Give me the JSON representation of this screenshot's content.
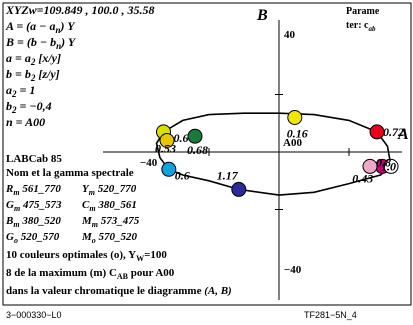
{
  "header": {
    "xyz": "XYZw=109.849 , 100.0 , 35.58"
  },
  "formulas": [
    {
      "id": "a-def",
      "text": "A = (a − a",
      "sub": "n",
      "tail": ") Y"
    },
    {
      "id": "b-def",
      "text": "B = (b − b",
      "sub": "n",
      "tail": ") Y"
    },
    {
      "id": "a-eq",
      "text": "a = a",
      "sub": "2",
      "tail": " [x/y]"
    },
    {
      "id": "b-eq",
      "text": "b = b",
      "sub": "2",
      "tail": " [z/y]"
    },
    {
      "id": "a2",
      "text": "a",
      "sub": "2",
      "tail": " = 1"
    },
    {
      "id": "b2",
      "text": "b",
      "sub": "2",
      "tail": " = −0,4"
    },
    {
      "id": "n",
      "text": "n = A00",
      "sub": "",
      "tail": ""
    }
  ],
  "space_name": "LABCab 85",
  "gamma_title": "Nom et la gamma spectrale",
  "gamma_lines": [
    [
      "R",
      "m",
      " 561_770",
      "Y",
      "m",
      " 520_770"
    ],
    [
      "G",
      "m",
      " 475_573",
      "C",
      "m",
      " 380_561"
    ],
    [
      "B",
      "m",
      " 380_520",
      "M",
      "m",
      " 573_475"
    ],
    [
      "G",
      "o",
      " 520_570",
      "M",
      "o",
      " 570_520"
    ]
  ],
  "optimal_colors": {
    "text": "10 couleurs optimales (o), Y",
    "sub": "W",
    "tail": "=100"
  },
  "maximum_line": {
    "text": "8 de la maximum (m) C",
    "sub": "AB",
    "tail": " pour A00"
  },
  "chroma_line": {
    "text": "dans la valeur chromatique le diagramme",
    "tail": " (A, B)"
  },
  "param": {
    "line1": "Parame",
    "line2": "ter: c",
    "sub": "ab"
  },
  "axes": {
    "a_label": "A",
    "b_label": "B",
    "tick_pos": "40",
    "tick_neg": "−40",
    "center": "A00",
    "xlim": [
      -80,
      80
    ],
    "ylim": [
      -80,
      80
    ]
  },
  "chart_data": {
    "type": "scatter",
    "points": [
      {
        "name": "red",
        "A": 56,
        "B": 14,
        "color": "#e8001e",
        "label": "0.72"
      },
      {
        "name": "yellow",
        "A": 9,
        "B": 24,
        "color": "#f2e600",
        "label": "0.16"
      },
      {
        "name": "yellow-green",
        "A": -66,
        "B": 14,
        "color": "#d8e000",
        "label": "0.6"
      },
      {
        "name": "green",
        "A": -48,
        "B": 11,
        "color": "#1a7a3a",
        "label": "0.68"
      },
      {
        "name": "orange-yellow",
        "A": -64,
        "B": 8,
        "color": "#e6c800",
        "label": "0.53"
      },
      {
        "name": "cyan",
        "A": -63,
        "B": -12,
        "color": "#0aa4e0",
        "label": "0.6"
      },
      {
        "name": "blue",
        "A": -23,
        "B": -26,
        "color": "#2a2a9a",
        "label": "1.17"
      },
      {
        "name": "magenta",
        "A": 59,
        "B": -10,
        "color": "#c8007c",
        "label": "0.43"
      },
      {
        "name": "pink",
        "A": 52,
        "B": -10,
        "color": "#f0a8c8",
        "label": "0.8"
      },
      {
        "name": "white",
        "A": 64,
        "B": -10,
        "color": "#ffffff",
        "label": "1.0"
      }
    ],
    "gamut": [
      [
        -66,
        14
      ],
      [
        -55,
        22
      ],
      [
        -40,
        26
      ],
      [
        -20,
        27
      ],
      [
        0,
        27
      ],
      [
        20,
        26
      ],
      [
        40,
        22
      ],
      [
        56,
        14
      ],
      [
        62,
        4
      ],
      [
        64,
        -10
      ],
      [
        58,
        -16
      ],
      [
        40,
        -22
      ],
      [
        20,
        -28
      ],
      [
        0,
        -30
      ],
      [
        -23,
        -26
      ],
      [
        -40,
        -20
      ],
      [
        -55,
        -16
      ],
      [
        -63,
        -12
      ],
      [
        -68,
        -4
      ],
      [
        -70,
        6
      ],
      [
        -66,
        14
      ]
    ]
  },
  "footer": {
    "left": "3−000330−L0",
    "right": "TF281−5N_4"
  }
}
